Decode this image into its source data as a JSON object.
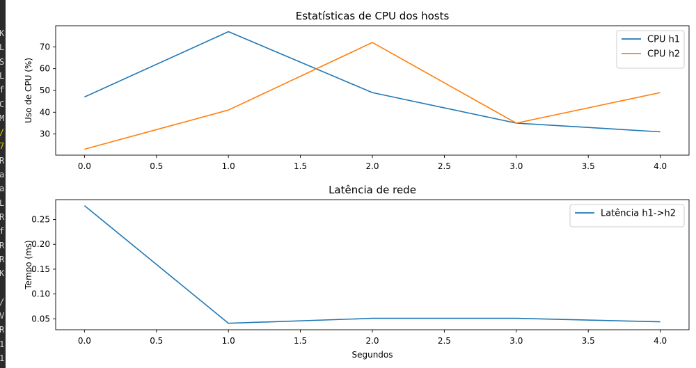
{
  "terminal": {
    "glyphs": [
      "K",
      "L",
      "S",
      "L",
      "f",
      "C",
      "M",
      "/",
      "7",
      "R",
      "a",
      "a",
      "L",
      "R",
      "f",
      "R",
      "R",
      "K",
      "",
      "/",
      "V",
      "R",
      "1",
      "1"
    ],
    "highlight_index": [
      7,
      8
    ],
    "highlight_color": "#e6d600"
  },
  "chart_data": [
    {
      "type": "line",
      "title": "Estatísticas de CPU dos hosts",
      "xlabel": "",
      "ylabel": "Uso de CPU (%)",
      "xlim": [
        -0.2,
        4.2
      ],
      "ylim": [
        20.3,
        79.7
      ],
      "xticks": [
        0.0,
        0.5,
        1.0,
        1.5,
        2.0,
        2.5,
        3.0,
        3.5,
        4.0
      ],
      "xtick_labels": [
        "0.0",
        "0.5",
        "1.0",
        "1.5",
        "2.0",
        "2.5",
        "3.0",
        "3.5",
        "4.0"
      ],
      "yticks": [
        30,
        40,
        50,
        60,
        70
      ],
      "ytick_labels": [
        "30",
        "40",
        "50",
        "60",
        "70"
      ],
      "grid": false,
      "legend": "top-right",
      "series": [
        {
          "name": "CPU h1",
          "color": "#1f77b4",
          "x": [
            0,
            1,
            2,
            3,
            4
          ],
          "values": [
            47,
            77,
            49,
            35,
            31
          ]
        },
        {
          "name": "CPU h2",
          "color": "#ff7f0e",
          "x": [
            0,
            1,
            2,
            3,
            4
          ],
          "values": [
            23,
            41,
            72,
            35,
            49
          ]
        }
      ]
    },
    {
      "type": "line",
      "title": "Latência de rede",
      "xlabel": "Segundos",
      "ylabel": "Tempo (ms)",
      "xlim": [
        -0.2,
        4.2
      ],
      "ylim": [
        0.028,
        0.29
      ],
      "xticks": [
        0.0,
        0.5,
        1.0,
        1.5,
        2.0,
        2.5,
        3.0,
        3.5,
        4.0
      ],
      "xtick_labels": [
        "0.0",
        "0.5",
        "1.0",
        "1.5",
        "2.0",
        "2.5",
        "3.0",
        "3.5",
        "4.0"
      ],
      "yticks": [
        0.05,
        0.1,
        0.15,
        0.2,
        0.25
      ],
      "ytick_labels": [
        "0.05",
        "0.10",
        "0.15",
        "0.20",
        "0.25"
      ],
      "grid": false,
      "legend": "top-right",
      "series": [
        {
          "name": "Latência h1->h2",
          "color": "#1f77b4",
          "x": [
            0,
            1,
            2,
            3,
            4
          ],
          "values": [
            0.278,
            0.041,
            0.051,
            0.051,
            0.044
          ]
        }
      ]
    }
  ]
}
